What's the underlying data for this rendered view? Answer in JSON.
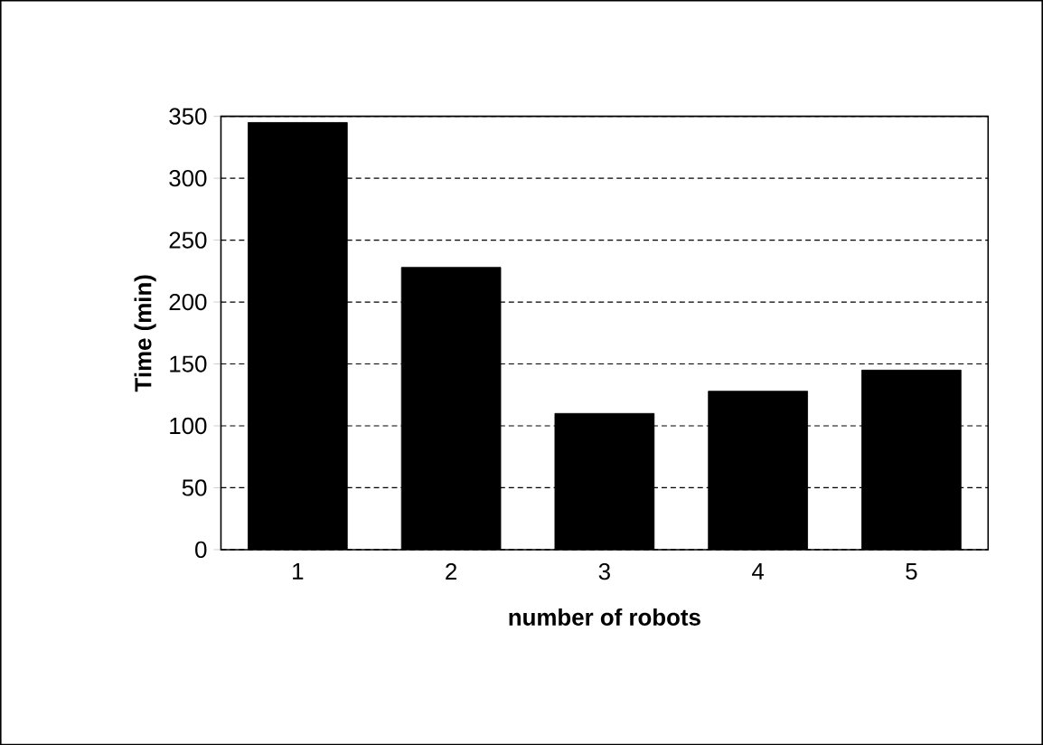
{
  "chart_data": {
    "type": "bar",
    "xlabel": "number of robots",
    "ylabel": "Time (min)",
    "categories": [
      "1",
      "2",
      "3",
      "4",
      "5"
    ],
    "values": [
      345,
      228,
      110,
      128,
      145
    ],
    "color": "#000000",
    "ylim": [
      0,
      350
    ],
    "yticks": [
      0,
      50,
      100,
      150,
      200,
      250,
      300,
      350
    ],
    "grid": "y"
  }
}
